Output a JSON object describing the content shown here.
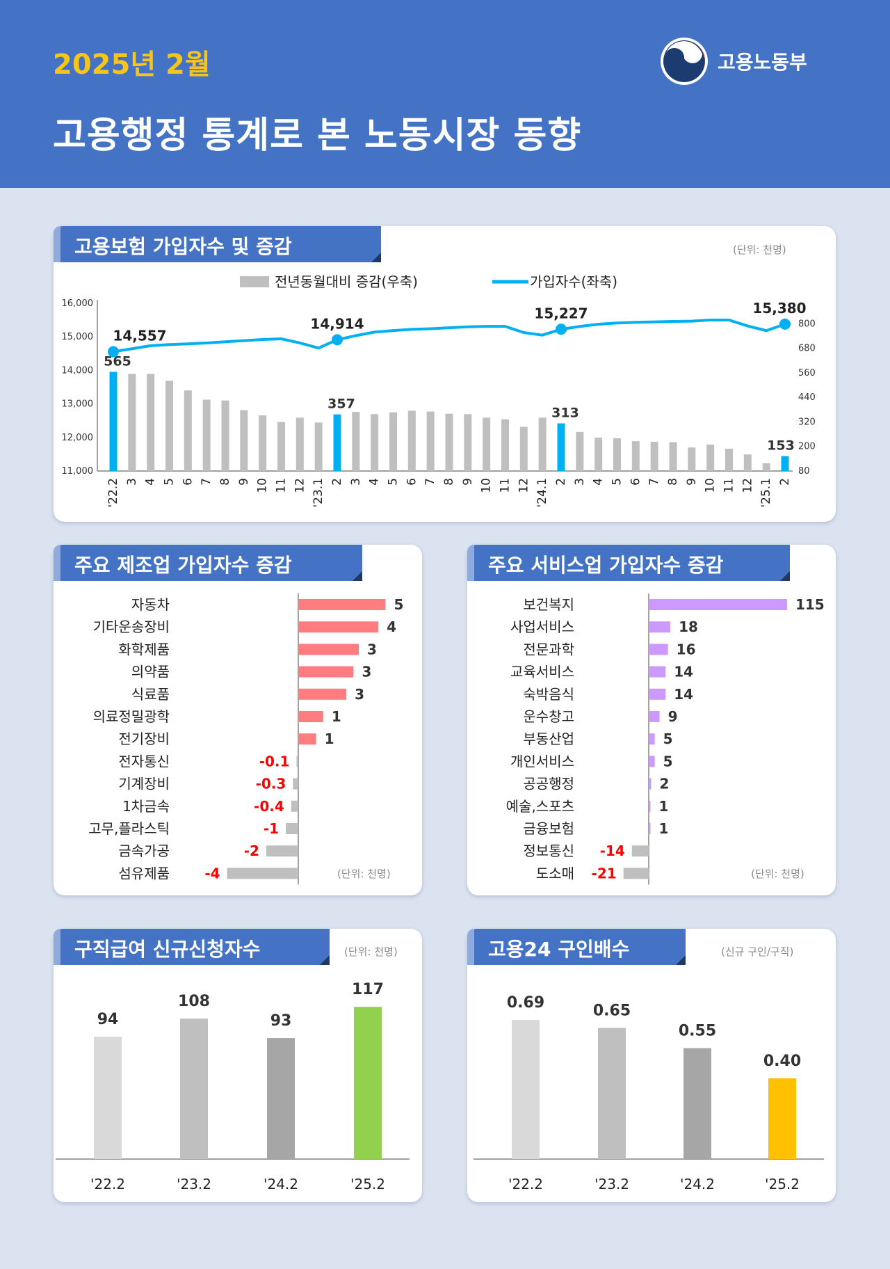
{
  "header": {
    "date": "2025년 2월",
    "title": "고용행정 통계로 본 노동시장 동향",
    "ministry": "고용노동부"
  },
  "colors": {
    "header": "#4472c4",
    "line": "#00b0f0",
    "bar": "#bfbfbf",
    "highlight": "#00b0f0",
    "manufacturing": "#ff7c80",
    "service": "#cc99ff",
    "negative_bar": "#bfbfbf",
    "negative_label": "#ff0000",
    "claims_latest": "#92d050",
    "ratio_latest": "#ffc000"
  },
  "chart_data": [
    {
      "type": "bar+line",
      "title": "고용보험 가입자수 및 증감",
      "unit": "(단위: 천명)",
      "legend": [
        "전년동월대비 증감(우축)",
        "가입자수(좌축)"
      ],
      "legend_position": "top",
      "categories": [
        "'22.2",
        "3",
        "4",
        "5",
        "6",
        "7",
        "8",
        "9",
        "10",
        "11",
        "12",
        "'23.1",
        "2",
        "3",
        "4",
        "5",
        "6",
        "7",
        "8",
        "9",
        "10",
        "11",
        "12",
        "'24.1",
        "2",
        "3",
        "4",
        "5",
        "6",
        "7",
        "8",
        "9",
        "10",
        "11",
        "12",
        "'25.1",
        "2"
      ],
      "y_left": {
        "ylim": [
          11000,
          16000
        ],
        "ticks": [
          "11,000",
          "12,000",
          "13,000",
          "14,000",
          "15,000",
          "16,000"
        ]
      },
      "y_right": {
        "ylim": [
          80,
          900
        ],
        "ticks": [
          "80",
          "200",
          "320",
          "440",
          "560",
          "680",
          "800"
        ]
      },
      "series": [
        {
          "name": "전년동월대비 증감(우축)",
          "axis": "right",
          "type": "bar",
          "values": [
            565,
            555,
            555,
            521,
            474,
            429,
            425,
            378,
            352,
            320,
            341,
            317,
            357,
            369,
            358,
            367,
            375,
            371,
            360,
            358,
            341,
            333,
            296,
            341,
            313,
            271,
            243,
            240,
            226,
            223,
            221,
            195,
            209,
            189,
            161,
            118,
            153
          ],
          "highlight": [
            0,
            12,
            24,
            36
          ]
        },
        {
          "name": "가입자수(좌축)",
          "axis": "left",
          "type": "line",
          "values": [
            14557,
            14646,
            14736,
            14770,
            14791,
            14818,
            14853,
            14887,
            14922,
            14942,
            14818,
            14667,
            14914,
            15038,
            15141,
            15189,
            15224,
            15244,
            15272,
            15300,
            15313,
            15313,
            15128,
            15052,
            15227,
            15310,
            15378,
            15413,
            15434,
            15447,
            15461,
            15468,
            15502,
            15502,
            15324,
            15186,
            15380
          ],
          "markers": [
            0,
            12,
            24,
            36
          ]
        }
      ],
      "labels": {
        "bar": {
          "0": "565",
          "12": "357",
          "24": "313",
          "36": "153"
        },
        "line": {
          "0": "14,557",
          "12": "14,914",
          "24": "15,227",
          "36": "15,380"
        }
      }
    },
    {
      "type": "hbar",
      "title": "주요 제조업 가입자수 증감",
      "unit": "(단위: 천명)",
      "categories": [
        "자동차",
        "기타운송장비",
        "화학제품",
        "의약품",
        "식료품",
        "의료정밀광학",
        "전기장비",
        "전자통신",
        "기계장비",
        "1차금속",
        "고무,플라스틱",
        "금속가공",
        "섬유제품"
      ],
      "values": [
        5,
        4,
        3,
        3,
        3,
        1,
        1,
        -0.1,
        -0.3,
        -0.4,
        -1,
        -2,
        -4
      ],
      "bar_values": [
        4.9,
        4.5,
        3.4,
        3.1,
        2.7,
        1.4,
        1.0,
        -0.1,
        -0.3,
        -0.4,
        -0.7,
        -1.8,
        -4.0
      ],
      "labels": [
        "5",
        "4",
        "3",
        "3",
        "3",
        "1",
        "1",
        "-0.1",
        "-0.3",
        "-0.4",
        "-1",
        "-2",
        "-4"
      ]
    },
    {
      "type": "hbar",
      "title": "주요 서비스업 가입자수 증감",
      "unit": "(단위: 천명)",
      "categories": [
        "보건복지",
        "사업서비스",
        "전문과학",
        "교육서비스",
        "숙박음식",
        "운수창고",
        "부동산업",
        "개인서비스",
        "공공행정",
        "예술,스포츠",
        "금융보험",
        "정보통신",
        "도소매"
      ],
      "values": [
        115,
        18,
        16,
        14,
        14,
        9,
        5,
        5,
        2,
        1,
        1,
        -14,
        -21
      ],
      "labels": [
        "115",
        "18",
        "16",
        "14",
        "14",
        "9",
        "5",
        "5",
        "2",
        "1",
        "1",
        "-14",
        "-21"
      ]
    },
    {
      "type": "bar",
      "title": "구직급여 신규신청자수",
      "unit": "(단위: 천명)",
      "categories": [
        "'22.2",
        "'23.2",
        "'24.2",
        "'25.2"
      ],
      "values": [
        94,
        108,
        93,
        117
      ],
      "labels": [
        "94",
        "108",
        "93",
        "117"
      ],
      "colors": [
        "#d9d9d9",
        "#bfbfbf",
        "#a6a6a6",
        "#92d050"
      ]
    },
    {
      "type": "bar",
      "title": "고용24 구인배수",
      "unit": "(신규 구인/구직)",
      "categories": [
        "'22.2",
        "'23.2",
        "'24.2",
        "'25.2"
      ],
      "values": [
        0.69,
        0.65,
        0.55,
        0.4
      ],
      "labels": [
        "0.69",
        "0.65",
        "0.55",
        "0.40"
      ],
      "colors": [
        "#d9d9d9",
        "#bfbfbf",
        "#a6a6a6",
        "#ffc000"
      ]
    }
  ]
}
